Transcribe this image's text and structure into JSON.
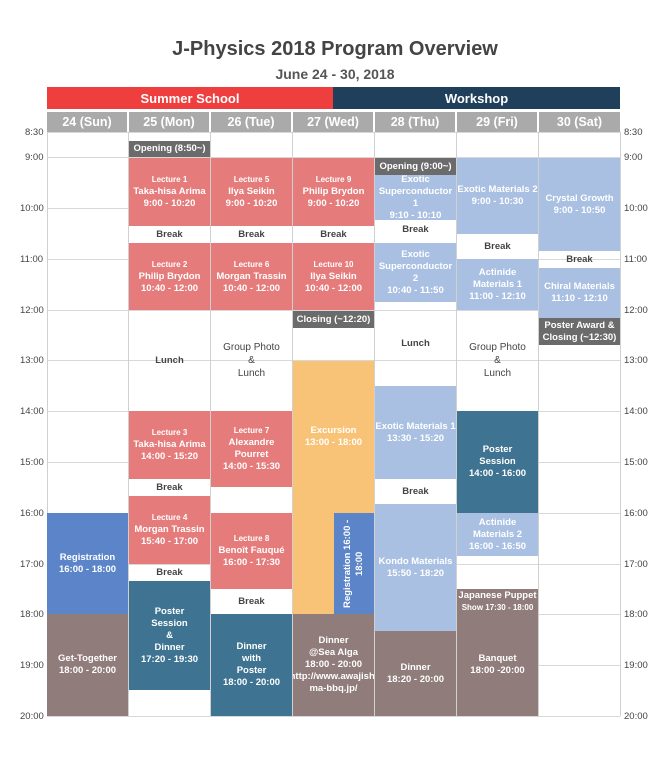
{
  "title": "J-Physics 2018 Program Overview",
  "subtitle": "June 24 - 30, 2018",
  "banners": {
    "summer": "Summer School",
    "workshop": "Workshop"
  },
  "colors": {
    "summer": "#ef3e3e",
    "workshop": "#1f3f5b",
    "lecture": "#e57b7b",
    "workshop_talk": "#a9c0e2",
    "excursion": "#f9c377",
    "registration": "#5b85c8",
    "poster": "#3e7391",
    "dinner": "#8f7c7b",
    "header": "#aaaaaa"
  },
  "days": [
    "24  (Sun)",
    "25  (Mon)",
    "26  (Tue)",
    "27  (Wed)",
    "28  (Thu)",
    "29  (Fri)",
    "30  (Sat)"
  ],
  "times": [
    "8:30",
    "9:00",
    "10:00",
    "11:00",
    "12:00",
    "13:00",
    "14:00",
    "15:00",
    "16:00",
    "17:00",
    "18:00",
    "19:00",
    "20:00"
  ],
  "events": {
    "mon": {
      "opening": "Opening (8:50~)",
      "lec1": [
        "Lecture 1",
        "Taka-hisa Arima",
        "9:00 - 10:20"
      ],
      "break1": "Break",
      "lec2": [
        "Lecture 2",
        "Philip Brydon",
        "10:40 - 12:00"
      ],
      "lunch": "Lunch",
      "lec3": [
        "Lecture 3",
        "Taka-hisa Arima",
        "14:00 - 15:20"
      ],
      "break2": "Break",
      "lec4": [
        "Lecture 4",
        "Morgan Trassin",
        "15:40 - 17:00"
      ],
      "break3": "Break",
      "poster": [
        "Poster",
        "Session",
        "&",
        "Dinner",
        "17:20 - 19:30"
      ]
    },
    "tue": {
      "lec5": [
        "Lecture 5",
        "Ilya Seikin",
        "9:00 - 10:20"
      ],
      "break1": "Break",
      "lec6": [
        "Lecture 6",
        "Morgan Trassin",
        "10:40 - 12:00"
      ],
      "lunch": [
        "Group Photo",
        "&",
        "Lunch"
      ],
      "lec7": [
        "Lecture 7",
        "Alexandre Pourret",
        "14:00 - 15:30"
      ],
      "lec8": [
        "Lecture 8",
        "Benoît Fauqué",
        "16:00 - 17:30"
      ],
      "break2": "Break",
      "dinner": [
        "Dinner",
        "with",
        "Poster",
        "18:00 - 20:00"
      ]
    },
    "wed": {
      "lec9": [
        "Lecture 9",
        "Philip Brydon",
        "9:00 - 10:20"
      ],
      "break1": "Break",
      "lec10": [
        "Lecture 10",
        "Ilya Seikin",
        "10:40 - 12:00"
      ],
      "closing": "Closing (~12:20)",
      "excursion": [
        "Excursion",
        "13:00 - 18:00"
      ],
      "registration": "Registration  16:00 - 18:00",
      "dinner": [
        "Dinner",
        "@Sea Alga",
        "18:00 - 20:00",
        "http://www.awajishi",
        "ma-bbq.jp/"
      ]
    },
    "sun": {
      "registration": [
        "Registration",
        "16:00 - 18:00"
      ],
      "gettogether": [
        "Get-Together",
        "18:00 - 20:00"
      ]
    },
    "thu": {
      "opening": "Opening (9:00~)",
      "exotic1": [
        "Exotic",
        "Superconductor 1",
        "9:10 - 10:10"
      ],
      "break1": "Break",
      "exotic2": [
        "Exotic",
        "Superconductor 2",
        "10:40 - 11:50"
      ],
      "lunch": "Lunch",
      "em1": [
        "Exotic Materials 1",
        "13:30 - 15:20"
      ],
      "break2": "Break",
      "kondo": [
        "Kondo Materials",
        "15:50 - 18:20"
      ],
      "dinner": [
        "Dinner",
        "18:20 - 20:00"
      ]
    },
    "fri": {
      "em2": [
        "Exotic Materials 2",
        "9:00 - 10:30"
      ],
      "break1": "Break",
      "am1": [
        "Actinide",
        "Materials 1",
        "11:00 - 12:10"
      ],
      "lunch": [
        "Group Photo",
        "&",
        "Lunch"
      ],
      "poster": [
        "Poster",
        "Session",
        "14:00 - 16:00"
      ],
      "am2": [
        "Actinide",
        "Materials 2",
        "16:00 - 16:50"
      ],
      "puppet": [
        "Japanese Puppet",
        "Show 17:30 - 18:00"
      ],
      "banquet": [
        "Banquet",
        "18:00 -20:00"
      ]
    },
    "sat": {
      "crystal": [
        "Crystal Growth",
        "9:00 - 10:50"
      ],
      "break1": "Break",
      "chiral": [
        "Chiral Materials",
        "11:10 - 12:10"
      ],
      "closing": [
        "Poster Award &",
        "Closing (~12:30)"
      ]
    }
  }
}
